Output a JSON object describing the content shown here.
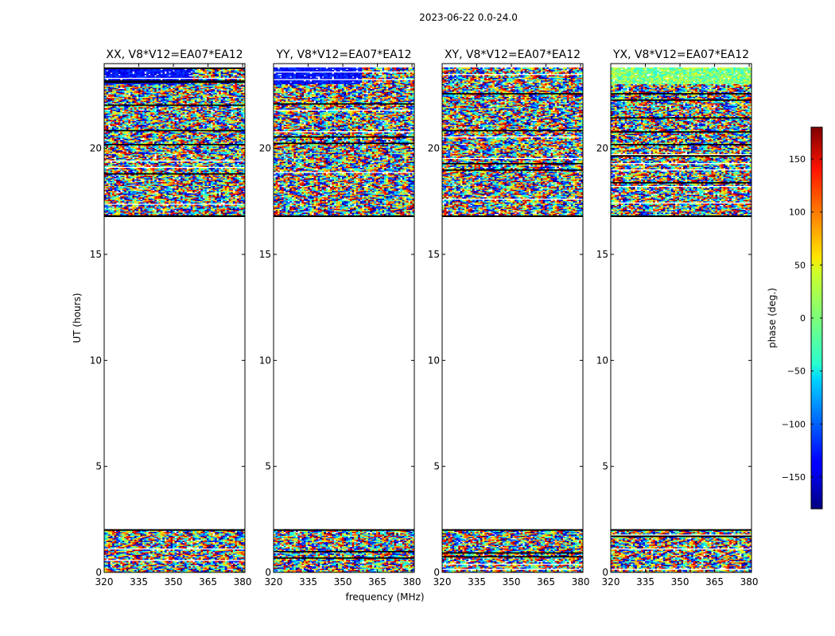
{
  "figure": {
    "suptitle": "2023-06-22 0.0-24.0"
  },
  "chart_data": {
    "type": "heatmap",
    "description_text": "",
    "xlabel": "frequency (MHz)",
    "ylabel": "UT (hours)",
    "xlim": [
      320,
      381
    ],
    "ylim": [
      0,
      24
    ],
    "xticks": [
      320,
      335,
      350,
      365,
      380
    ],
    "yticks": [
      0,
      5,
      10,
      15,
      20
    ],
    "panels": [
      {
        "title": "XX, V8*V12=EA07*EA12",
        "variant": "parallel"
      },
      {
        "title": "YY, V8*V12=EA07*EA12",
        "variant": "parallel"
      },
      {
        "title": "XY, V8*V12=EA07*EA12",
        "variant": "cross"
      },
      {
        "title": "YX, V8*V12=EA07*EA12",
        "variant": "cross2"
      }
    ],
    "data_time_ranges_hours": [
      [
        0.0,
        2.0
      ],
      [
        16.8,
        23.8
      ]
    ],
    "colorbar": {
      "label": "phase (deg.)",
      "range": [
        -180,
        180
      ],
      "ticks": [
        -150,
        -100,
        -50,
        0,
        50,
        100,
        150
      ],
      "colormap": "jet"
    }
  }
}
